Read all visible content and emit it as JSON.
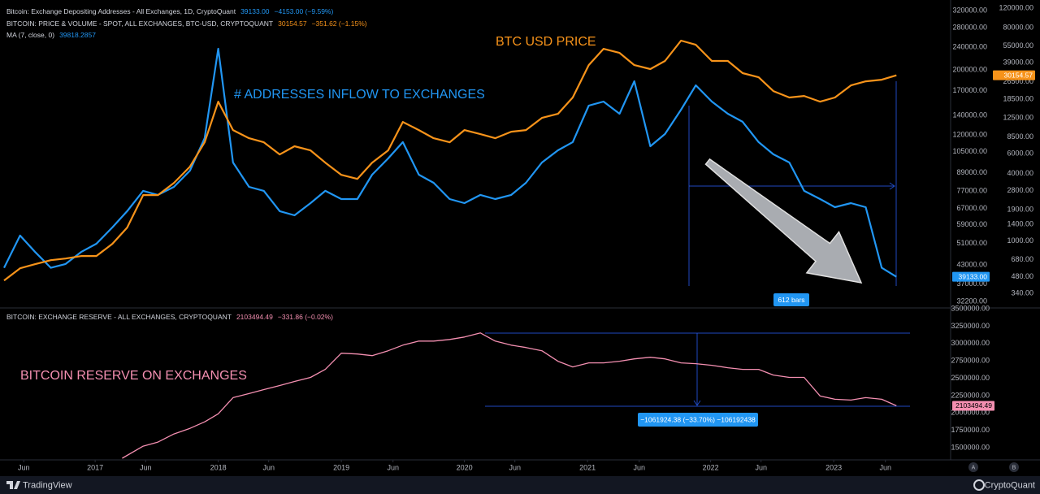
{
  "chart_data": [
    {
      "type": "line",
      "log": true,
      "grid": false,
      "xlim": [
        2016.26,
        2023.95
      ],
      "x": [
        2016.26,
        2016.39,
        2016.51,
        2016.64,
        2016.76,
        2016.89,
        2017.01,
        2017.14,
        2017.26,
        2017.39,
        2017.51,
        2017.64,
        2017.77,
        2017.89,
        2018.0,
        2018.12,
        2018.25,
        2018.37,
        2018.5,
        2018.62,
        2018.75,
        2018.87,
        2019.0,
        2019.13,
        2019.25,
        2019.38,
        2019.5,
        2019.63,
        2019.75,
        2019.88,
        2020.0,
        2020.13,
        2020.25,
        2020.38,
        2020.5,
        2020.63,
        2020.76,
        2020.88,
        2021.01,
        2021.13,
        2021.26,
        2021.38,
        2021.51,
        2021.63,
        2021.76,
        2021.88,
        2022.01,
        2022.14,
        2022.26,
        2022.39,
        2022.51,
        2022.64,
        2022.76,
        2022.89,
        2023.01,
        2023.14,
        2023.26,
        2023.39,
        2023.51
      ],
      "ylim": [
        30800,
        337000
      ],
      "yticks": [
        {
          "value": 320000,
          "label": "320000.00"
        },
        {
          "value": 280000,
          "label": "280000.00"
        },
        {
          "value": 240000,
          "label": "240000.00"
        },
        {
          "value": 200000,
          "label": "200000.00"
        },
        {
          "value": 170000,
          "label": "170000.00"
        },
        {
          "value": 140000,
          "label": "140000.00"
        },
        {
          "value": 120000,
          "label": "120000.00"
        },
        {
          "value": 105000,
          "label": "105000.00"
        },
        {
          "value": 89000,
          "label": "89000.00"
        },
        {
          "value": 77000,
          "label": "77000.00"
        },
        {
          "value": 67000,
          "label": "67000.00"
        },
        {
          "value": 59000,
          "label": "59000.00"
        },
        {
          "value": 51000,
          "label": "51000.00"
        },
        {
          "value": 43000,
          "label": "43000.00"
        },
        {
          "value": 37000,
          "label": "37000.00"
        },
        {
          "value": 32200,
          "label": "32200.00"
        }
      ],
      "y2lim": [
        256,
        130500
      ],
      "y2ticks": [
        {
          "value": 120000,
          "label": "120000.00"
        },
        {
          "value": 80000,
          "label": "80000.00"
        },
        {
          "value": 55000,
          "label": "55000.00"
        },
        {
          "value": 39000,
          "label": "39000.00"
        },
        {
          "value": 26500,
          "label": "26500.00"
        },
        {
          "value": 18500,
          "label": "18500.00"
        },
        {
          "value": 12500,
          "label": "12500.00"
        },
        {
          "value": 8500,
          "label": "8500.00"
        },
        {
          "value": 6000,
          "label": "6000.00"
        },
        {
          "value": 4000,
          "label": "4000.00"
        },
        {
          "value": 2800,
          "label": "2800.00"
        },
        {
          "value": 1900,
          "label": "1900.00"
        },
        {
          "value": 1400,
          "label": "1400.00"
        },
        {
          "value": 1000,
          "label": "1000.00"
        },
        {
          "value": 680,
          "label": "680.00"
        },
        {
          "value": 480,
          "label": "480.00"
        },
        {
          "value": 340,
          "label": "340.00"
        }
      ],
      "series": [
        {
          "name": "Bitcoin: Exchange Depositing Addresses - All Exchanges, 1D, CryptoQuant",
          "color": "#2196f3",
          "legend_value": "39133.00",
          "legend_change": "−4153.00 (−9.59%)",
          "last_label": "39133.00",
          "values": [
            42000,
            54200,
            47700,
            42000,
            43300,
            47700,
            50800,
            57800,
            65700,
            77100,
            74700,
            79600,
            90500,
            117000,
            236800,
            96500,
            79600,
            77100,
            65700,
            63600,
            70000,
            77100,
            72300,
            72300,
            87600,
            99600,
            113300,
            87600,
            82200,
            72300,
            70000,
            74700,
            72300,
            74700,
            82200,
            96500,
            106200,
            113300,
            151200,
            156100,
            141800,
            183200,
            109700,
            120800,
            146400,
            177400,
            156100,
            141800,
            133000,
            113300,
            102900,
            96500,
            77100,
            72300,
            67800,
            70000,
            67800,
            42000,
            39133
          ]
        },
        {
          "name": "BITCOIN: PRICE & VOLUME - SPOT, ALL EXCHANGES, BTC-USD, CRYPTOQUANT",
          "color": "#f7931a",
          "axis": "y2",
          "legend_value": "30154.57",
          "legend_change": "−351.62 (−1.15%)",
          "last_label": "30154.57",
          "values": [
            443,
            569,
            619,
            673,
            696,
            732,
            732,
            941,
            1314,
            2564,
            2564,
            3295,
            4602,
            7608,
            17540,
            9770,
            8260,
            7608,
            5920,
            7000,
            6430,
            5000,
            3890,
            3580,
            5000,
            6430,
            11540,
            9770,
            8260,
            7608,
            9770,
            8990,
            8260,
            9440,
            9770,
            12550,
            13650,
            19080,
            37200,
            52000,
            47800,
            37200,
            34250,
            40500,
            61500,
            56500,
            40500,
            40500,
            31500,
            28970,
            21800,
            19080,
            19700,
            17540,
            19080,
            24500,
            26640,
            27540,
            30154.57
          ]
        }
      ],
      "ma_label": "MA (7, close, 0)",
      "ma_value": "39818.2857",
      "annotations": [
        "BTC USD PRICE",
        "# ADDRESSES INFLOW TO EXCHANGES",
        "612 bars"
      ]
    },
    {
      "type": "line",
      "log": false,
      "grid": false,
      "xlim": [
        2016.26,
        2023.95
      ],
      "xticks": [
        {
          "value": 2016.42,
          "label": "Jun"
        },
        2017,
        {
          "value": 2017.41,
          "label": "Jun"
        },
        2018,
        {
          "value": 2018.41,
          "label": "Jun"
        },
        2019,
        {
          "value": 2019.42,
          "label": "Jun"
        },
        2020,
        {
          "value": 2020.41,
          "label": "Jun"
        },
        2021,
        {
          "value": 2021.42,
          "label": "Jun"
        },
        2022,
        {
          "value": 2022.41,
          "label": "Jun"
        },
        2023,
        {
          "value": 2023.42,
          "label": "Jun"
        }
      ],
      "x": [
        2017.22,
        2017.39,
        2017.51,
        2017.64,
        2017.77,
        2017.89,
        2018.0,
        2018.12,
        2018.25,
        2018.37,
        2018.5,
        2018.62,
        2018.75,
        2018.87,
        2019.0,
        2019.13,
        2019.25,
        2019.38,
        2019.5,
        2019.63,
        2019.75,
        2019.88,
        2020.0,
        2020.13,
        2020.25,
        2020.38,
        2020.5,
        2020.63,
        2020.76,
        2020.88,
        2021.01,
        2021.13,
        2021.26,
        2021.38,
        2021.51,
        2021.63,
        2021.76,
        2021.88,
        2022.01,
        2022.14,
        2022.26,
        2022.39,
        2022.51,
        2022.64,
        2022.76,
        2022.89,
        2023.01,
        2023.14,
        2023.26,
        2023.39,
        2023.51
      ],
      "ylim": [
        1337000,
        3500000
      ],
      "yticks": [
        {
          "value": 3500000,
          "label": "3500000.00"
        },
        {
          "value": 3250000,
          "label": "3250000.00"
        },
        {
          "value": 3000000,
          "label": "3000000.00"
        },
        {
          "value": 2750000,
          "label": "2750000.00"
        },
        {
          "value": 2500000,
          "label": "2500000.00"
        },
        {
          "value": 2250000,
          "label": "2250000.00"
        },
        {
          "value": 2000000,
          "label": "2000000.00"
        },
        {
          "value": 1750000,
          "label": "1750000.00"
        },
        {
          "value": 1500000,
          "label": "1500000.00"
        }
      ],
      "series": [
        {
          "name": "BITCOIN: EXCHANGE RESERVE - ALL EXCHANGES, CRYPTOQUANT",
          "color": "#f48fb1",
          "legend_value": "2103494.49",
          "legend_change": "−331.86 (−0.02%)",
          "last_label": "2103494.49",
          "values": [
            1348800,
            1523300,
            1581400,
            1697700,
            1779100,
            1872100,
            1988400,
            2220900,
            2279100,
            2337200,
            2395300,
            2453500,
            2511600,
            2627900,
            2860500,
            2848800,
            2825600,
            2895300,
            2976700,
            3034900,
            3034900,
            3058100,
            3093000,
            3151200,
            3034900,
            2976700,
            2941900,
            2895300,
            2744200,
            2662800,
            2720900,
            2720900,
            2744200,
            2779100,
            2802300,
            2779100,
            2720900,
            2709300,
            2686000,
            2651200,
            2627900,
            2627900,
            2546500,
            2511600,
            2511600,
            2244200,
            2197700,
            2186000,
            2220900,
            2197700,
            2103494.49
          ]
        }
      ],
      "annotations": [
        "BITCOIN RESERVE ON EXCHANGES",
        "−1061924.38 (−33.70%) −106192438"
      ]
    }
  ],
  "footer": {
    "left": "TradingView",
    "right": "CryptoQuant",
    "buttons": [
      "A",
      "B"
    ]
  }
}
